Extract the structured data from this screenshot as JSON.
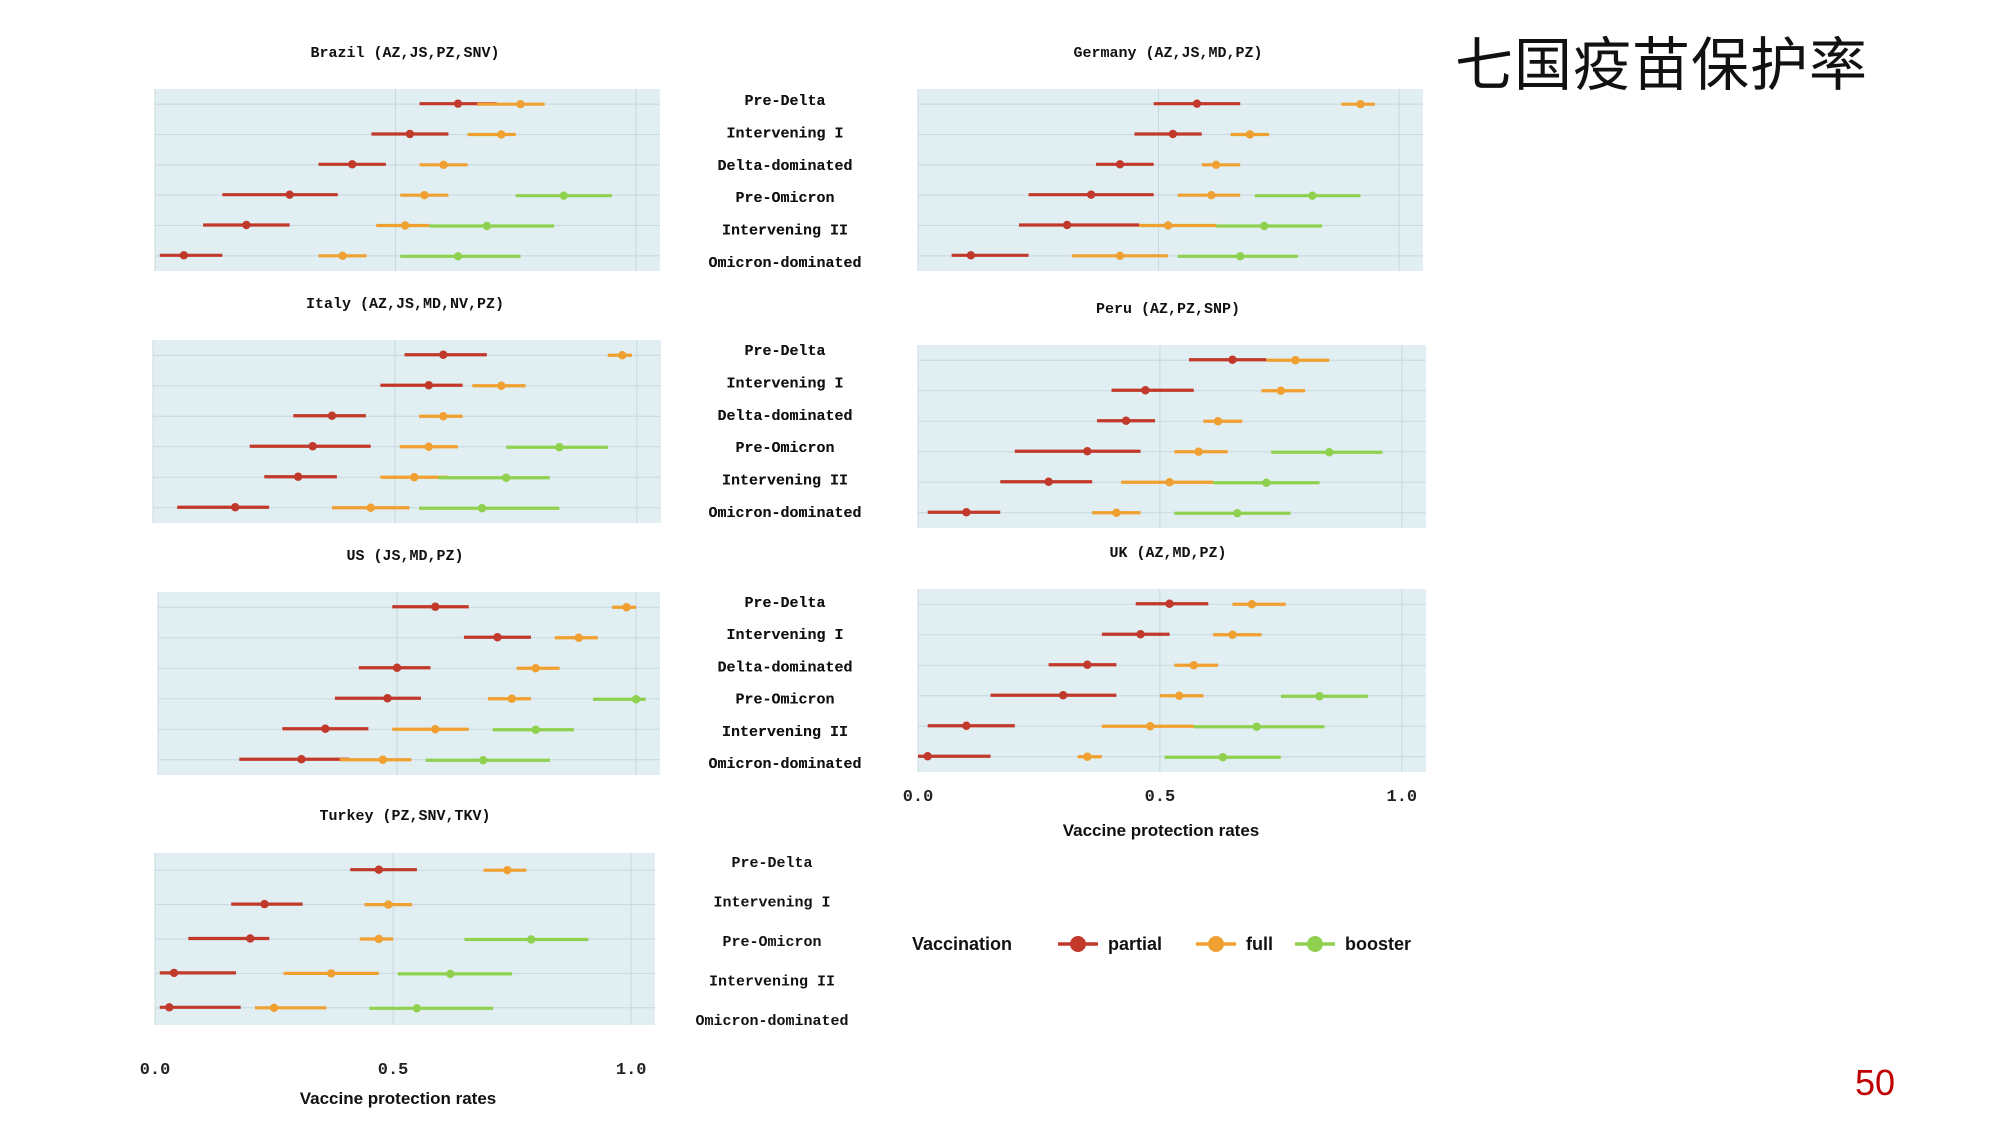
{
  "slide": {
    "title": "七国疫苗保护率",
    "page_number": "50"
  },
  "chart_data": {
    "type": "forest",
    "x_axis": {
      "label": "Vaccine  protection rates",
      "range": [
        0,
        1.05
      ],
      "ticks": [
        0.0,
        0.5,
        1.0
      ],
      "tick_labels": [
        "0.0",
        "0.5",
        "1.0"
      ]
    },
    "legend": {
      "title": "Vaccination",
      "items": [
        {
          "name": "partial",
          "color": "#c0392b"
        },
        {
          "name": "full",
          "color": "#f0a030"
        },
        {
          "name": "booster",
          "color": "#8fd14f"
        }
      ]
    },
    "colors": {
      "partial": "#c0392b",
      "full": "#f0a030",
      "booster": "#8fd14f",
      "panel_bg": "#e1eff3",
      "grid": "#c9d8dd"
    },
    "panels": [
      {
        "title": "Brazil (AZ,JS,PZ,SNV)",
        "categories": [
          "Pre-Delta",
          "Intervening I",
          "Delta-dominated",
          "Pre-Omicron",
          "Intervening II",
          "Omicron-dominated"
        ],
        "series": [
          {
            "name": "partial",
            "points": [
              {
                "est": 0.63,
                "lo": 0.55,
                "hi": 0.71
              },
              {
                "est": 0.53,
                "lo": 0.45,
                "hi": 0.61
              },
              {
                "est": 0.41,
                "lo": 0.34,
                "hi": 0.48
              },
              {
                "est": 0.28,
                "lo": 0.14,
                "hi": 0.38
              },
              {
                "est": 0.19,
                "lo": 0.1,
                "hi": 0.28
              },
              {
                "est": 0.06,
                "lo": 0.01,
                "hi": 0.14
              }
            ]
          },
          {
            "name": "full",
            "points": [
              {
                "est": 0.76,
                "lo": 0.67,
                "hi": 0.81
              },
              {
                "est": 0.72,
                "lo": 0.65,
                "hi": 0.75
              },
              {
                "est": 0.6,
                "lo": 0.55,
                "hi": 0.65
              },
              {
                "est": 0.56,
                "lo": 0.51,
                "hi": 0.61
              },
              {
                "est": 0.52,
                "lo": 0.46,
                "hi": 0.57
              },
              {
                "est": 0.39,
                "lo": 0.34,
                "hi": 0.44
              }
            ]
          },
          {
            "name": "booster",
            "points": [
              null,
              null,
              null,
              {
                "est": 0.85,
                "lo": 0.75,
                "hi": 0.95
              },
              {
                "est": 0.69,
                "lo": 0.57,
                "hi": 0.83
              },
              {
                "est": 0.63,
                "lo": 0.51,
                "hi": 0.76
              }
            ]
          }
        ]
      },
      {
        "title": "Germany (AZ,JS,MD,PZ)",
        "categories": [
          "Pre-Delta",
          "Intervening I",
          "Delta-dominated",
          "Pre-Omicron",
          "Intervening II",
          "Omicron-dominated"
        ],
        "series": [
          {
            "name": "partial",
            "points": [
              {
                "est": 0.58,
                "lo": 0.49,
                "hi": 0.67
              },
              {
                "est": 0.53,
                "lo": 0.45,
                "hi": 0.59
              },
              {
                "est": 0.42,
                "lo": 0.37,
                "hi": 0.49
              },
              {
                "est": 0.36,
                "lo": 0.23,
                "hi": 0.49
              },
              {
                "est": 0.31,
                "lo": 0.21,
                "hi": 0.46
              },
              {
                "est": 0.11,
                "lo": 0.07,
                "hi": 0.23
              }
            ]
          },
          {
            "name": "full",
            "points": [
              {
                "est": 0.92,
                "lo": 0.88,
                "hi": 0.95
              },
              {
                "est": 0.69,
                "lo": 0.65,
                "hi": 0.73
              },
              {
                "est": 0.62,
                "lo": 0.59,
                "hi": 0.67
              },
              {
                "est": 0.61,
                "lo": 0.54,
                "hi": 0.67
              },
              {
                "est": 0.52,
                "lo": 0.46,
                "hi": 0.62
              },
              {
                "est": 0.42,
                "lo": 0.32,
                "hi": 0.52
              }
            ]
          },
          {
            "name": "booster",
            "points": [
              null,
              null,
              null,
              {
                "est": 0.82,
                "lo": 0.7,
                "hi": 0.92
              },
              {
                "est": 0.72,
                "lo": 0.62,
                "hi": 0.84
              },
              {
                "est": 0.67,
                "lo": 0.54,
                "hi": 0.79
              }
            ]
          }
        ]
      },
      {
        "title": "Italy (AZ,JS,MD,NV,PZ)",
        "categories": [
          "Pre-Delta",
          "Intervening I",
          "Delta-dominated",
          "Pre-Omicron",
          "Intervening II",
          "Omicron-dominated"
        ],
        "series": [
          {
            "name": "partial",
            "points": [
              {
                "est": 0.6,
                "lo": 0.52,
                "hi": 0.69
              },
              {
                "est": 0.57,
                "lo": 0.47,
                "hi": 0.64
              },
              {
                "est": 0.37,
                "lo": 0.29,
                "hi": 0.44
              },
              {
                "est": 0.33,
                "lo": 0.2,
                "hi": 0.45
              },
              {
                "est": 0.3,
                "lo": 0.23,
                "hi": 0.38
              },
              {
                "est": 0.17,
                "lo": 0.05,
                "hi": 0.24
              }
            ]
          },
          {
            "name": "full",
            "points": [
              {
                "est": 0.97,
                "lo": 0.94,
                "hi": 0.99
              },
              {
                "est": 0.72,
                "lo": 0.66,
                "hi": 0.77
              },
              {
                "est": 0.6,
                "lo": 0.55,
                "hi": 0.64
              },
              {
                "est": 0.57,
                "lo": 0.51,
                "hi": 0.63
              },
              {
                "est": 0.54,
                "lo": 0.47,
                "hi": 0.61
              },
              {
                "est": 0.45,
                "lo": 0.37,
                "hi": 0.53
              }
            ]
          },
          {
            "name": "booster",
            "points": [
              null,
              null,
              null,
              {
                "est": 0.84,
                "lo": 0.73,
                "hi": 0.94
              },
              {
                "est": 0.73,
                "lo": 0.59,
                "hi": 0.82
              },
              {
                "est": 0.68,
                "lo": 0.55,
                "hi": 0.84
              }
            ]
          }
        ]
      },
      {
        "title": "Peru (AZ,PZ,SNP)",
        "categories": [
          "Pre-Delta",
          "Intervening I",
          "Delta-dominated",
          "Pre-Omicron",
          "Intervening II",
          "Omicron-dominated"
        ],
        "series": [
          {
            "name": "partial",
            "points": [
              {
                "est": 0.65,
                "lo": 0.56,
                "hi": 0.72
              },
              {
                "est": 0.47,
                "lo": 0.4,
                "hi": 0.57
              },
              {
                "est": 0.43,
                "lo": 0.37,
                "hi": 0.49
              },
              {
                "est": 0.35,
                "lo": 0.2,
                "hi": 0.46
              },
              {
                "est": 0.27,
                "lo": 0.17,
                "hi": 0.36
              },
              {
                "est": 0.1,
                "lo": 0.02,
                "hi": 0.17
              }
            ]
          },
          {
            "name": "full",
            "points": [
              {
                "est": 0.78,
                "lo": 0.72,
                "hi": 0.85
              },
              {
                "est": 0.75,
                "lo": 0.71,
                "hi": 0.8
              },
              {
                "est": 0.62,
                "lo": 0.59,
                "hi": 0.67
              },
              {
                "est": 0.58,
                "lo": 0.53,
                "hi": 0.64
              },
              {
                "est": 0.52,
                "lo": 0.42,
                "hi": 0.61
              },
              {
                "est": 0.41,
                "lo": 0.36,
                "hi": 0.46
              }
            ]
          },
          {
            "name": "booster",
            "points": [
              null,
              null,
              null,
              {
                "est": 0.85,
                "lo": 0.73,
                "hi": 0.96
              },
              {
                "est": 0.72,
                "lo": 0.61,
                "hi": 0.83
              },
              {
                "est": 0.66,
                "lo": 0.53,
                "hi": 0.77
              }
            ]
          }
        ]
      },
      {
        "title": "US (JS,MD,PZ)",
        "categories": [
          "Pre-Delta",
          "Intervening I",
          "Delta-dominated",
          "Pre-Omicron",
          "Intervening II",
          "Omicron-dominated"
        ],
        "series": [
          {
            "name": "partial",
            "points": [
              {
                "est": 0.58,
                "lo": 0.49,
                "hi": 0.65
              },
              {
                "est": 0.71,
                "lo": 0.64,
                "hi": 0.78
              },
              {
                "est": 0.5,
                "lo": 0.42,
                "hi": 0.57
              },
              {
                "est": 0.48,
                "lo": 0.37,
                "hi": 0.55
              },
              {
                "est": 0.35,
                "lo": 0.26,
                "hi": 0.44
              },
              {
                "est": 0.3,
                "lo": 0.17,
                "hi": 0.4
              }
            ]
          },
          {
            "name": "full",
            "points": [
              {
                "est": 0.98,
                "lo": 0.95,
                "hi": 1.0
              },
              {
                "est": 0.88,
                "lo": 0.83,
                "hi": 0.92
              },
              {
                "est": 0.79,
                "lo": 0.75,
                "hi": 0.84
              },
              {
                "est": 0.74,
                "lo": 0.69,
                "hi": 0.78
              },
              {
                "est": 0.58,
                "lo": 0.49,
                "hi": 0.65
              },
              {
                "est": 0.47,
                "lo": 0.38,
                "hi": 0.53
              }
            ]
          },
          {
            "name": "booster",
            "points": [
              null,
              null,
              null,
              {
                "est": 1.0,
                "lo": 0.91,
                "hi": 1.02
              },
              {
                "est": 0.79,
                "lo": 0.7,
                "hi": 0.87
              },
              {
                "est": 0.68,
                "lo": 0.56,
                "hi": 0.82
              }
            ]
          }
        ]
      },
      {
        "title": "UK (AZ,MD,PZ)",
        "categories": [
          "Pre-Delta",
          "Intervening I",
          "Delta-dominated",
          "Pre-Omicron",
          "Intervening II",
          "Omicron-dominated"
        ],
        "series": [
          {
            "name": "partial",
            "points": [
              {
                "est": 0.52,
                "lo": 0.45,
                "hi": 0.6
              },
              {
                "est": 0.46,
                "lo": 0.38,
                "hi": 0.52
              },
              {
                "est": 0.35,
                "lo": 0.27,
                "hi": 0.41
              },
              {
                "est": 0.3,
                "lo": 0.15,
                "hi": 0.41
              },
              {
                "est": 0.1,
                "lo": 0.02,
                "hi": 0.2
              },
              {
                "est": 0.02,
                "lo": 0.0,
                "hi": 0.15
              }
            ]
          },
          {
            "name": "full",
            "points": [
              {
                "est": 0.69,
                "lo": 0.65,
                "hi": 0.76
              },
              {
                "est": 0.65,
                "lo": 0.61,
                "hi": 0.71
              },
              {
                "est": 0.57,
                "lo": 0.53,
                "hi": 0.62
              },
              {
                "est": 0.54,
                "lo": 0.5,
                "hi": 0.59
              },
              {
                "est": 0.48,
                "lo": 0.38,
                "hi": 0.57
              },
              {
                "est": 0.35,
                "lo": 0.33,
                "hi": 0.38
              }
            ]
          },
          {
            "name": "booster",
            "points": [
              null,
              null,
              null,
              {
                "est": 0.83,
                "lo": 0.75,
                "hi": 0.93
              },
              {
                "est": 0.7,
                "lo": 0.57,
                "hi": 0.84
              },
              {
                "est": 0.63,
                "lo": 0.51,
                "hi": 0.75
              }
            ]
          }
        ]
      },
      {
        "title": "Turkey (PZ,SNV,TKV)",
        "categories": [
          "Pre-Delta",
          "Intervening I",
          "Pre-Omicron",
          "Intervening II",
          "Omicron-dominated"
        ],
        "series": [
          {
            "name": "partial",
            "points": [
              {
                "est": 0.47,
                "lo": 0.41,
                "hi": 0.55
              },
              {
                "est": 0.23,
                "lo": 0.16,
                "hi": 0.31
              },
              {
                "est": 0.2,
                "lo": 0.07,
                "hi": 0.24
              },
              {
                "est": 0.04,
                "lo": 0.01,
                "hi": 0.17
              },
              {
                "est": 0.03,
                "lo": 0.01,
                "hi": 0.18
              }
            ]
          },
          {
            "name": "full",
            "points": [
              {
                "est": 0.74,
                "lo": 0.69,
                "hi": 0.78
              },
              {
                "est": 0.49,
                "lo": 0.44,
                "hi": 0.54
              },
              {
                "est": 0.47,
                "lo": 0.43,
                "hi": 0.5
              },
              {
                "est": 0.37,
                "lo": 0.27,
                "hi": 0.47
              },
              {
                "est": 0.25,
                "lo": 0.21,
                "hi": 0.36
              }
            ]
          },
          {
            "name": "booster",
            "points": [
              null,
              null,
              {
                "est": 0.79,
                "lo": 0.65,
                "hi": 0.91
              },
              {
                "est": 0.62,
                "lo": 0.51,
                "hi": 0.75
              },
              {
                "est": 0.55,
                "lo": 0.45,
                "hi": 0.71
              }
            ]
          }
        ]
      }
    ]
  }
}
